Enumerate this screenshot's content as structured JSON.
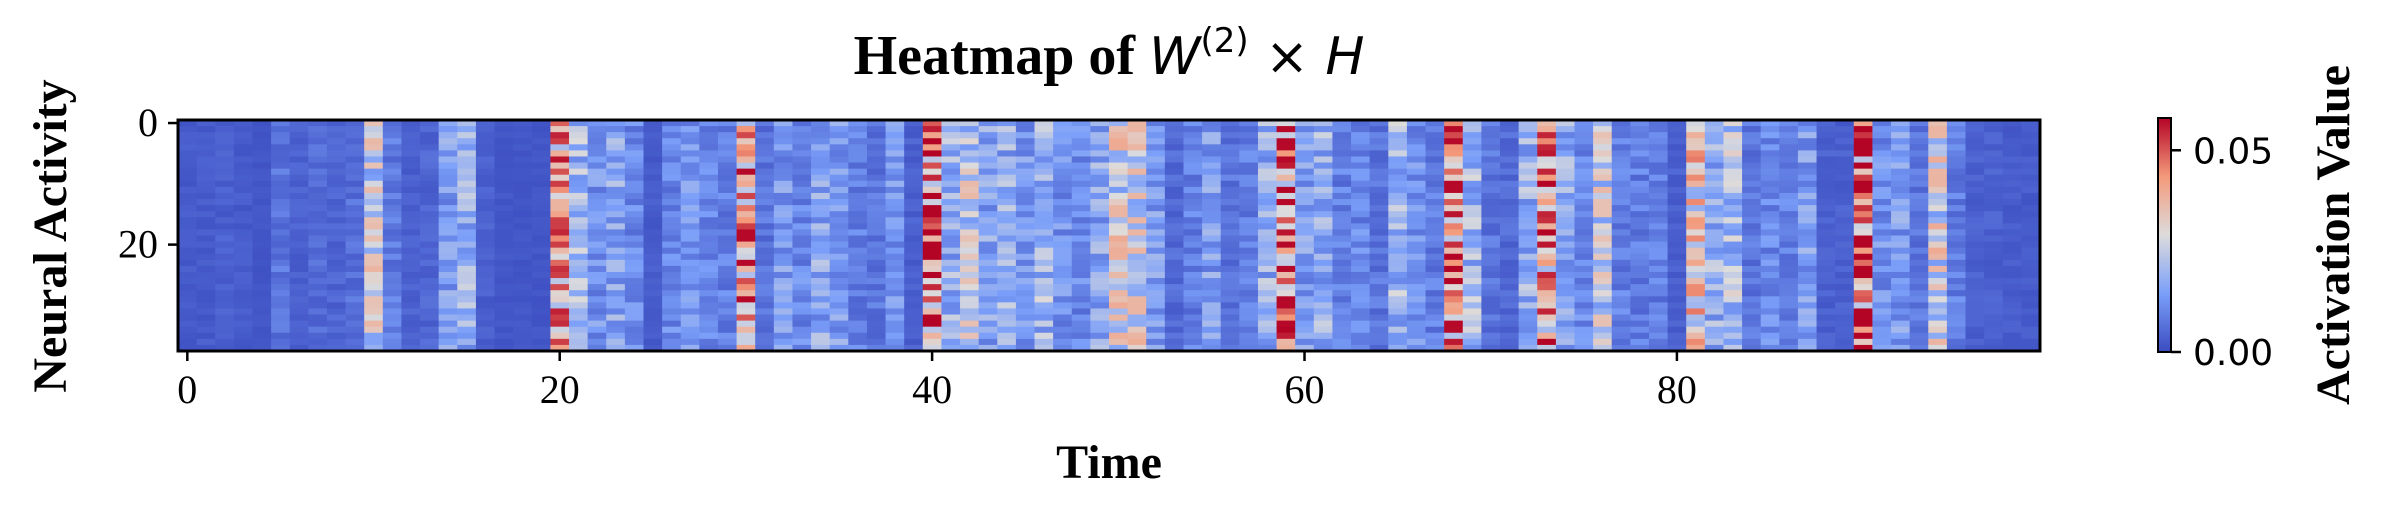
{
  "chart_data": {
    "type": "heatmap",
    "title_prefix": "Heatmap of ",
    "title_math": {
      "base": "W",
      "sup": "(2)",
      "op": " × ",
      "rhs": "H"
    },
    "xlabel": "Time",
    "ylabel": "Neural Activity",
    "colorbar_label": "Activation Value",
    "colormap": "coolwarm",
    "x_ticks": [
      "0",
      "20",
      "40",
      "60",
      "80"
    ],
    "y_ticks": [
      "0",
      "20"
    ],
    "colorbar_ticks": [
      "0.00",
      "0.05"
    ],
    "vmin": 0.0,
    "vmax": 0.058,
    "n_rows": 38,
    "n_cols": 100,
    "column_activation": [
      0.003,
      0.003,
      0.004,
      0.003,
      0.002,
      0.008,
      0.004,
      0.006,
      0.005,
      0.007,
      0.028,
      0.009,
      0.004,
      0.005,
      0.016,
      0.02,
      0.004,
      0.002,
      0.002,
      0.002,
      0.042,
      0.022,
      0.014,
      0.018,
      0.012,
      0.003,
      0.012,
      0.014,
      0.012,
      0.01,
      0.046,
      0.008,
      0.015,
      0.012,
      0.018,
      0.016,
      0.01,
      0.008,
      0.014,
      0.004,
      0.05,
      0.02,
      0.028,
      0.018,
      0.02,
      0.015,
      0.022,
      0.014,
      0.012,
      0.018,
      0.03,
      0.03,
      0.016,
      0.006,
      0.01,
      0.016,
      0.008,
      0.01,
      0.02,
      0.046,
      0.016,
      0.02,
      0.01,
      0.012,
      0.008,
      0.022,
      0.014,
      0.01,
      0.046,
      0.022,
      0.008,
      0.006,
      0.02,
      0.044,
      0.02,
      0.012,
      0.028,
      0.01,
      0.01,
      0.01,
      0.004,
      0.036,
      0.02,
      0.024,
      0.008,
      0.012,
      0.01,
      0.016,
      0.004,
      0.004,
      0.05,
      0.014,
      0.016,
      0.008,
      0.03,
      0.01,
      0.004,
      0.004,
      0.003,
      0.003
    ]
  }
}
